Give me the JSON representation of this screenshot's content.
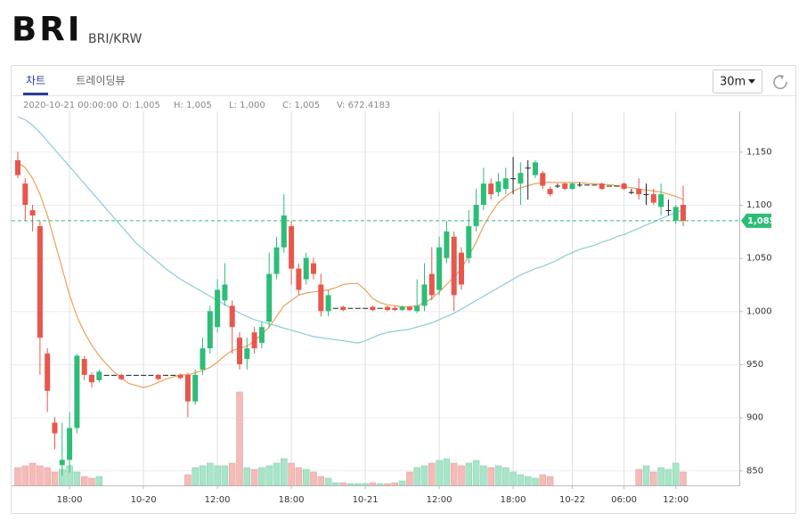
{
  "header": {
    "title": "BRI",
    "pair": "BRI/KRW"
  },
  "tabs": [
    {
      "label": "차트",
      "active": true
    },
    {
      "label": "트레이딩뷰",
      "active": false
    }
  ],
  "interval": "30m",
  "info": {
    "time": "2020-10-21 00:00:00",
    "open": "O: 1,005",
    "high": "H: 1,005",
    "low": "L: 1,000",
    "close": "C: 1,005",
    "volume": "V: 672.4183"
  },
  "chart_data": {
    "type": "candlestick",
    "up_color": "#2dbd78",
    "down_color": "#e8564c",
    "up_volume_color": "#a9e4c8",
    "down_volume_color": "#f4bcb9",
    "grid": true,
    "categories": [
      null,
      null,
      null,
      null,
      null,
      null,
      null,
      "18:00",
      null,
      null,
      null,
      null,
      null,
      null,
      null,
      null,
      null,
      "10-20",
      null,
      null,
      null,
      null,
      null,
      null,
      null,
      null,
      null,
      "12:00",
      null,
      null,
      null,
      null,
      null,
      null,
      null,
      null,
      null,
      "18:00",
      null,
      null,
      null,
      null,
      null,
      null,
      null,
      null,
      null,
      "10-21",
      null,
      null,
      null,
      null,
      null,
      null,
      null,
      null,
      null,
      "12:00",
      null,
      null,
      null,
      null,
      null,
      null,
      null,
      null,
      null,
      "18:00",
      null,
      null,
      null,
      null,
      null,
      null,
      null,
      "10-22",
      null,
      null,
      null,
      null,
      null,
      null,
      "06:00",
      null,
      null,
      null,
      null,
      null,
      null,
      "12:00",
      null
    ],
    "open": [
      1142,
      1120,
      1095,
      1080,
      960,
      895,
      855,
      860,
      890,
      955,
      940,
      935,
      940,
      940,
      940,
      940,
      940,
      940,
      940,
      940,
      940,
      940,
      940,
      940,
      915,
      945,
      965,
      985,
      1010,
      1005,
      975,
      955,
      980,
      970,
      990,
      1035,
      1060,
      1080,
      1040,
      1030,
      1045,
      1025,
      1000,
      1003,
      1004,
      1003,
      1003,
      1003,
      1004,
      1003,
      1004,
      1003,
      1001,
      1004,
      1000,
      1005,
      1035,
      1020,
      1050,
      1070,
      1055,
      1050,
      1080,
      1100,
      1120,
      1112,
      1115,
      1125,
      1120,
      1135,
      1128,
      1130,
      1115,
      1118,
      1120,
      1115,
      1119,
      1119,
      1119,
      1120,
      1118,
      1118,
      1120,
      1112,
      1115,
      1110,
      1110,
      1098,
      1095,
      1085,
      1100
    ],
    "high": [
      1150,
      1125,
      1100,
      1085,
      965,
      900,
      895,
      905,
      960,
      958,
      942,
      945,
      940,
      940,
      941,
      940,
      940,
      940,
      940,
      941,
      940,
      940,
      941,
      942,
      945,
      975,
      1005,
      1030,
      1045,
      1010,
      980,
      975,
      985,
      990,
      1055,
      1070,
      1110,
      1085,
      1045,
      1055,
      1050,
      1035,
      1020,
      1003,
      1005,
      1003,
      1003,
      1003,
      1005,
      1003,
      1005,
      1005,
      1005,
      1005,
      1030,
      1045,
      1060,
      1070,
      1085,
      1075,
      1060,
      1095,
      1115,
      1135,
      1125,
      1130,
      1135,
      1145,
      1140,
      1142,
      1142,
      1132,
      1117,
      1120,
      1121,
      1121,
      1121,
      1119,
      1119,
      1121,
      1118,
      1118,
      1121,
      1115,
      1125,
      1120,
      1115,
      1120,
      1105,
      1100,
      1118
    ],
    "low": [
      1125,
      1085,
      1075,
      940,
      905,
      870,
      845,
      848,
      885,
      935,
      928,
      933,
      940,
      940,
      935,
      940,
      940,
      940,
      940,
      935,
      940,
      940,
      936,
      900,
      912,
      940,
      960,
      980,
      1005,
      960,
      945,
      945,
      960,
      965,
      985,
      1030,
      1055,
      1025,
      1015,
      1025,
      1030,
      995,
      995,
      1003,
      1000,
      1003,
      1003,
      1003,
      1000,
      1003,
      1000,
      1000,
      1000,
      1000,
      998,
      1000,
      1010,
      1015,
      1045,
      1000,
      1020,
      1045,
      1075,
      1095,
      1105,
      1108,
      1110,
      1110,
      1100,
      1105,
      1125,
      1115,
      1108,
      1116,
      1114,
      1114,
      1117,
      1119,
      1119,
      1114,
      1118,
      1118,
      1114,
      1110,
      1105,
      1100,
      1100,
      1090,
      1090,
      1082,
      1080
    ],
    "close": [
      1128,
      1100,
      1090,
      975,
      925,
      885,
      860,
      890,
      958,
      940,
      933,
      943,
      940,
      940,
      936,
      940,
      940,
      940,
      940,
      936,
      940,
      940,
      937,
      915,
      940,
      965,
      1000,
      1020,
      1025,
      985,
      950,
      965,
      965,
      985,
      1035,
      1060,
      1090,
      1040,
      1020,
      1050,
      1035,
      1000,
      1015,
      1003,
      1001,
      1003,
      1003,
      1003,
      1001,
      1003,
      1001,
      1001,
      1004,
      1001,
      1005,
      1025,
      1015,
      1060,
      1075,
      1015,
      1025,
      1080,
      1100,
      1120,
      1110,
      1122,
      1125,
      1125,
      1130,
      1135,
      1140,
      1118,
      1110,
      1118,
      1115,
      1120,
      1119,
      1119,
      1119,
      1115,
      1118,
      1118,
      1115,
      1112,
      1110,
      1110,
      1102,
      1110,
      1095,
      1098,
      1085
    ],
    "volume": [
      20,
      22,
      25,
      22,
      20,
      15,
      18,
      22,
      15,
      10,
      8,
      10,
      0,
      0,
      0,
      0,
      0,
      0,
      0,
      0,
      0,
      0,
      0,
      12,
      20,
      22,
      25,
      22,
      22,
      25,
      105,
      20,
      18,
      20,
      22,
      25,
      30,
      25,
      20,
      18,
      15,
      10,
      8,
      3,
      3,
      2,
      2,
      2,
      3,
      2,
      2,
      3,
      5,
      15,
      20,
      22,
      25,
      28,
      30,
      25,
      22,
      25,
      28,
      22,
      20,
      22,
      20,
      15,
      12,
      10,
      8,
      12,
      10,
      0,
      0,
      0,
      0,
      0,
      0,
      0,
      0,
      0,
      0,
      0,
      18,
      22,
      15,
      20,
      18,
      25,
      15
    ],
    "ma_lines": [
      {
        "color": "#e8a15a",
        "values": [
          1140,
          1135,
          1125,
          1110,
          1090,
          1065,
          1040,
          1015,
          995,
          980,
          968,
          958,
          950,
          943,
          937,
          932,
          930,
          928,
          930,
          933,
          936,
          938,
          940,
          940,
          942,
          944,
          947,
          952,
          958,
          963,
          965,
          967,
          972,
          978,
          985,
          995,
          1005,
          1010,
          1015,
          1017,
          1018,
          1019,
          1020,
          1022,
          1025,
          1026,
          1026,
          1020,
          1012,
          1008,
          1006,
          1005,
          1004,
          1004,
          1005,
          1008,
          1012,
          1018,
          1025,
          1032,
          1040,
          1052,
          1065,
          1080,
          1092,
          1102,
          1108,
          1113,
          1116,
          1118,
          1120,
          1121,
          1121,
          1121,
          1121,
          1121,
          1121,
          1120,
          1120,
          1119,
          1119,
          1118,
          1117,
          1116,
          1115,
          1114,
          1113,
          1112,
          1110,
          1108,
          1105
        ]
      },
      {
        "color": "#8ccbd8",
        "values": [
          1183,
          1180,
          1175,
          1168,
          1160,
          1152,
          1144,
          1136,
          1128,
          1120,
          1112,
          1104,
          1096,
          1088,
          1080,
          1072,
          1064,
          1058,
          1052,
          1046,
          1040,
          1035,
          1030,
          1026,
          1022,
          1018,
          1014,
          1010,
          1006,
          1002,
          998,
          995,
          992,
          990,
          988,
          986,
          984,
          982,
          980,
          978,
          976,
          975,
          974,
          973,
          972,
          971,
          970,
          972,
          975,
          978,
          980,
          981,
          982,
          983,
          985,
          987,
          989,
          992,
          995,
          998,
          1002,
          1006,
          1010,
          1014,
          1018,
          1022,
          1026,
          1030,
          1034,
          1037,
          1040,
          1042,
          1045,
          1048,
          1052,
          1055,
          1058,
          1060,
          1062,
          1065,
          1067,
          1070,
          1072,
          1075,
          1078,
          1081,
          1084,
          1087,
          1090,
          1093,
          1095
        ]
      }
    ],
    "current_price": {
      "value": 1085,
      "label": "1,085",
      "color": "#2dbd78"
    },
    "ylim": [
      836,
      1188
    ],
    "yticks": [
      850,
      900,
      950,
      {
        "value": 1000,
        "label": "1,000"
      },
      {
        "value": 1050,
        "label": "1,050"
      },
      {
        "value": 1100,
        "label": "1,100"
      },
      {
        "value": 1150,
        "label": "1,150"
      }
    ]
  }
}
